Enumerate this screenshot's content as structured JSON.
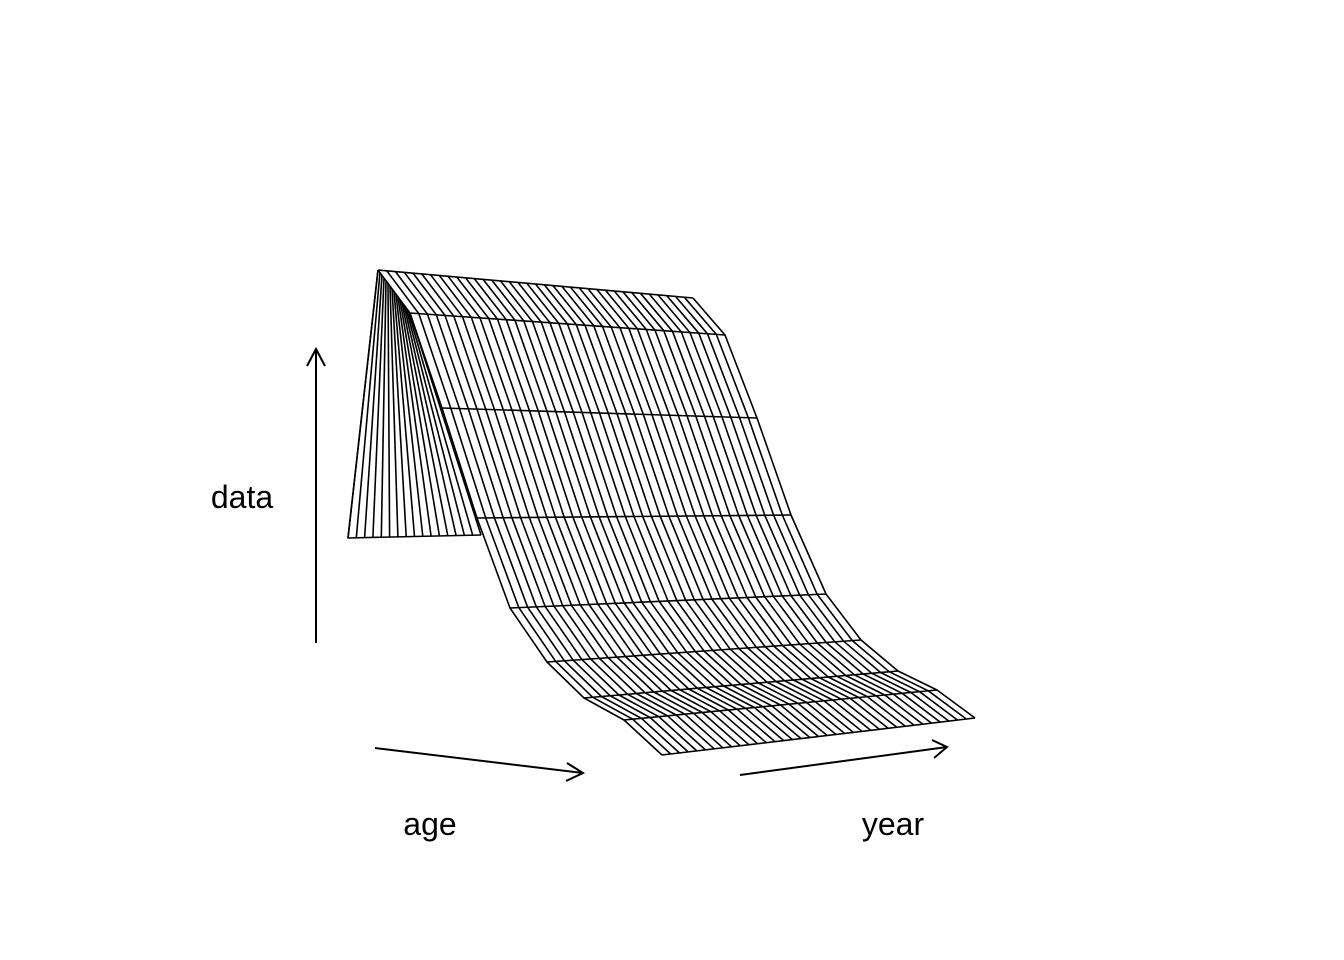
{
  "chart_data": {
    "type": "surface",
    "title": "",
    "xlabel": "age",
    "ylabel": "year",
    "zlabel": "data",
    "line_color": "#000000",
    "background": "#ffffff",
    "grid": false
  }
}
